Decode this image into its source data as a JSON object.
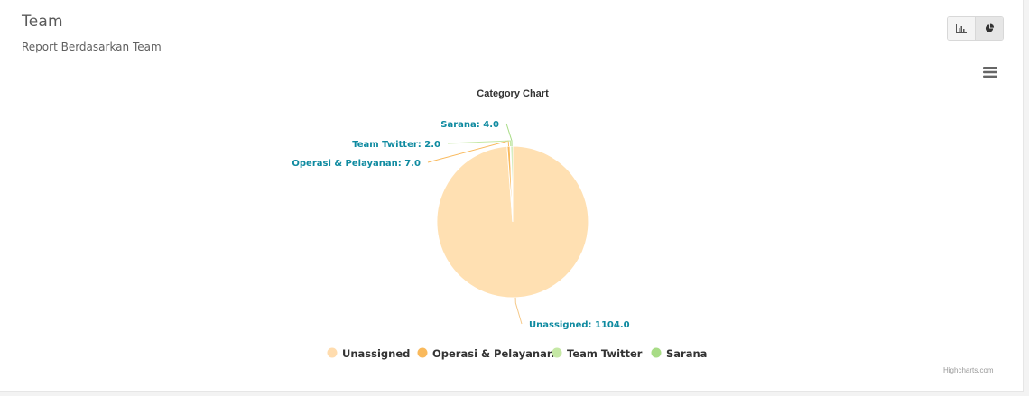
{
  "header": {
    "title": "Team",
    "subtitle": "Report Berdasarkan Team"
  },
  "toolbar": {
    "buttons": [
      {
        "icon": "bar-chart-icon",
        "active": false
      },
      {
        "icon": "pie-chart-icon",
        "active": true
      }
    ],
    "menu_icon": "hamburger-menu-icon"
  },
  "chart_data": {
    "type": "pie",
    "title": "Category Chart",
    "series": [
      {
        "name": "Unassigned",
        "value": 1104.0,
        "label": "Unassigned: 1104.0",
        "color": "#ffe0b2"
      },
      {
        "name": "Operasi & Pelayanan",
        "value": 7.0,
        "label": "Operasi & Pelayanan: 7.0",
        "color": "#f9b95c"
      },
      {
        "name": "Team Twitter",
        "value": 2.0,
        "label": "Team Twitter: 2.0",
        "color": "#c5e8a5"
      },
      {
        "name": "Sarana",
        "value": 4.0,
        "label": "Sarana: 4.0",
        "color": "#a8dc86"
      }
    ],
    "legend_position": "bottom-center",
    "label_color": "#0e8aa0"
  },
  "credits": "Highcharts.com"
}
